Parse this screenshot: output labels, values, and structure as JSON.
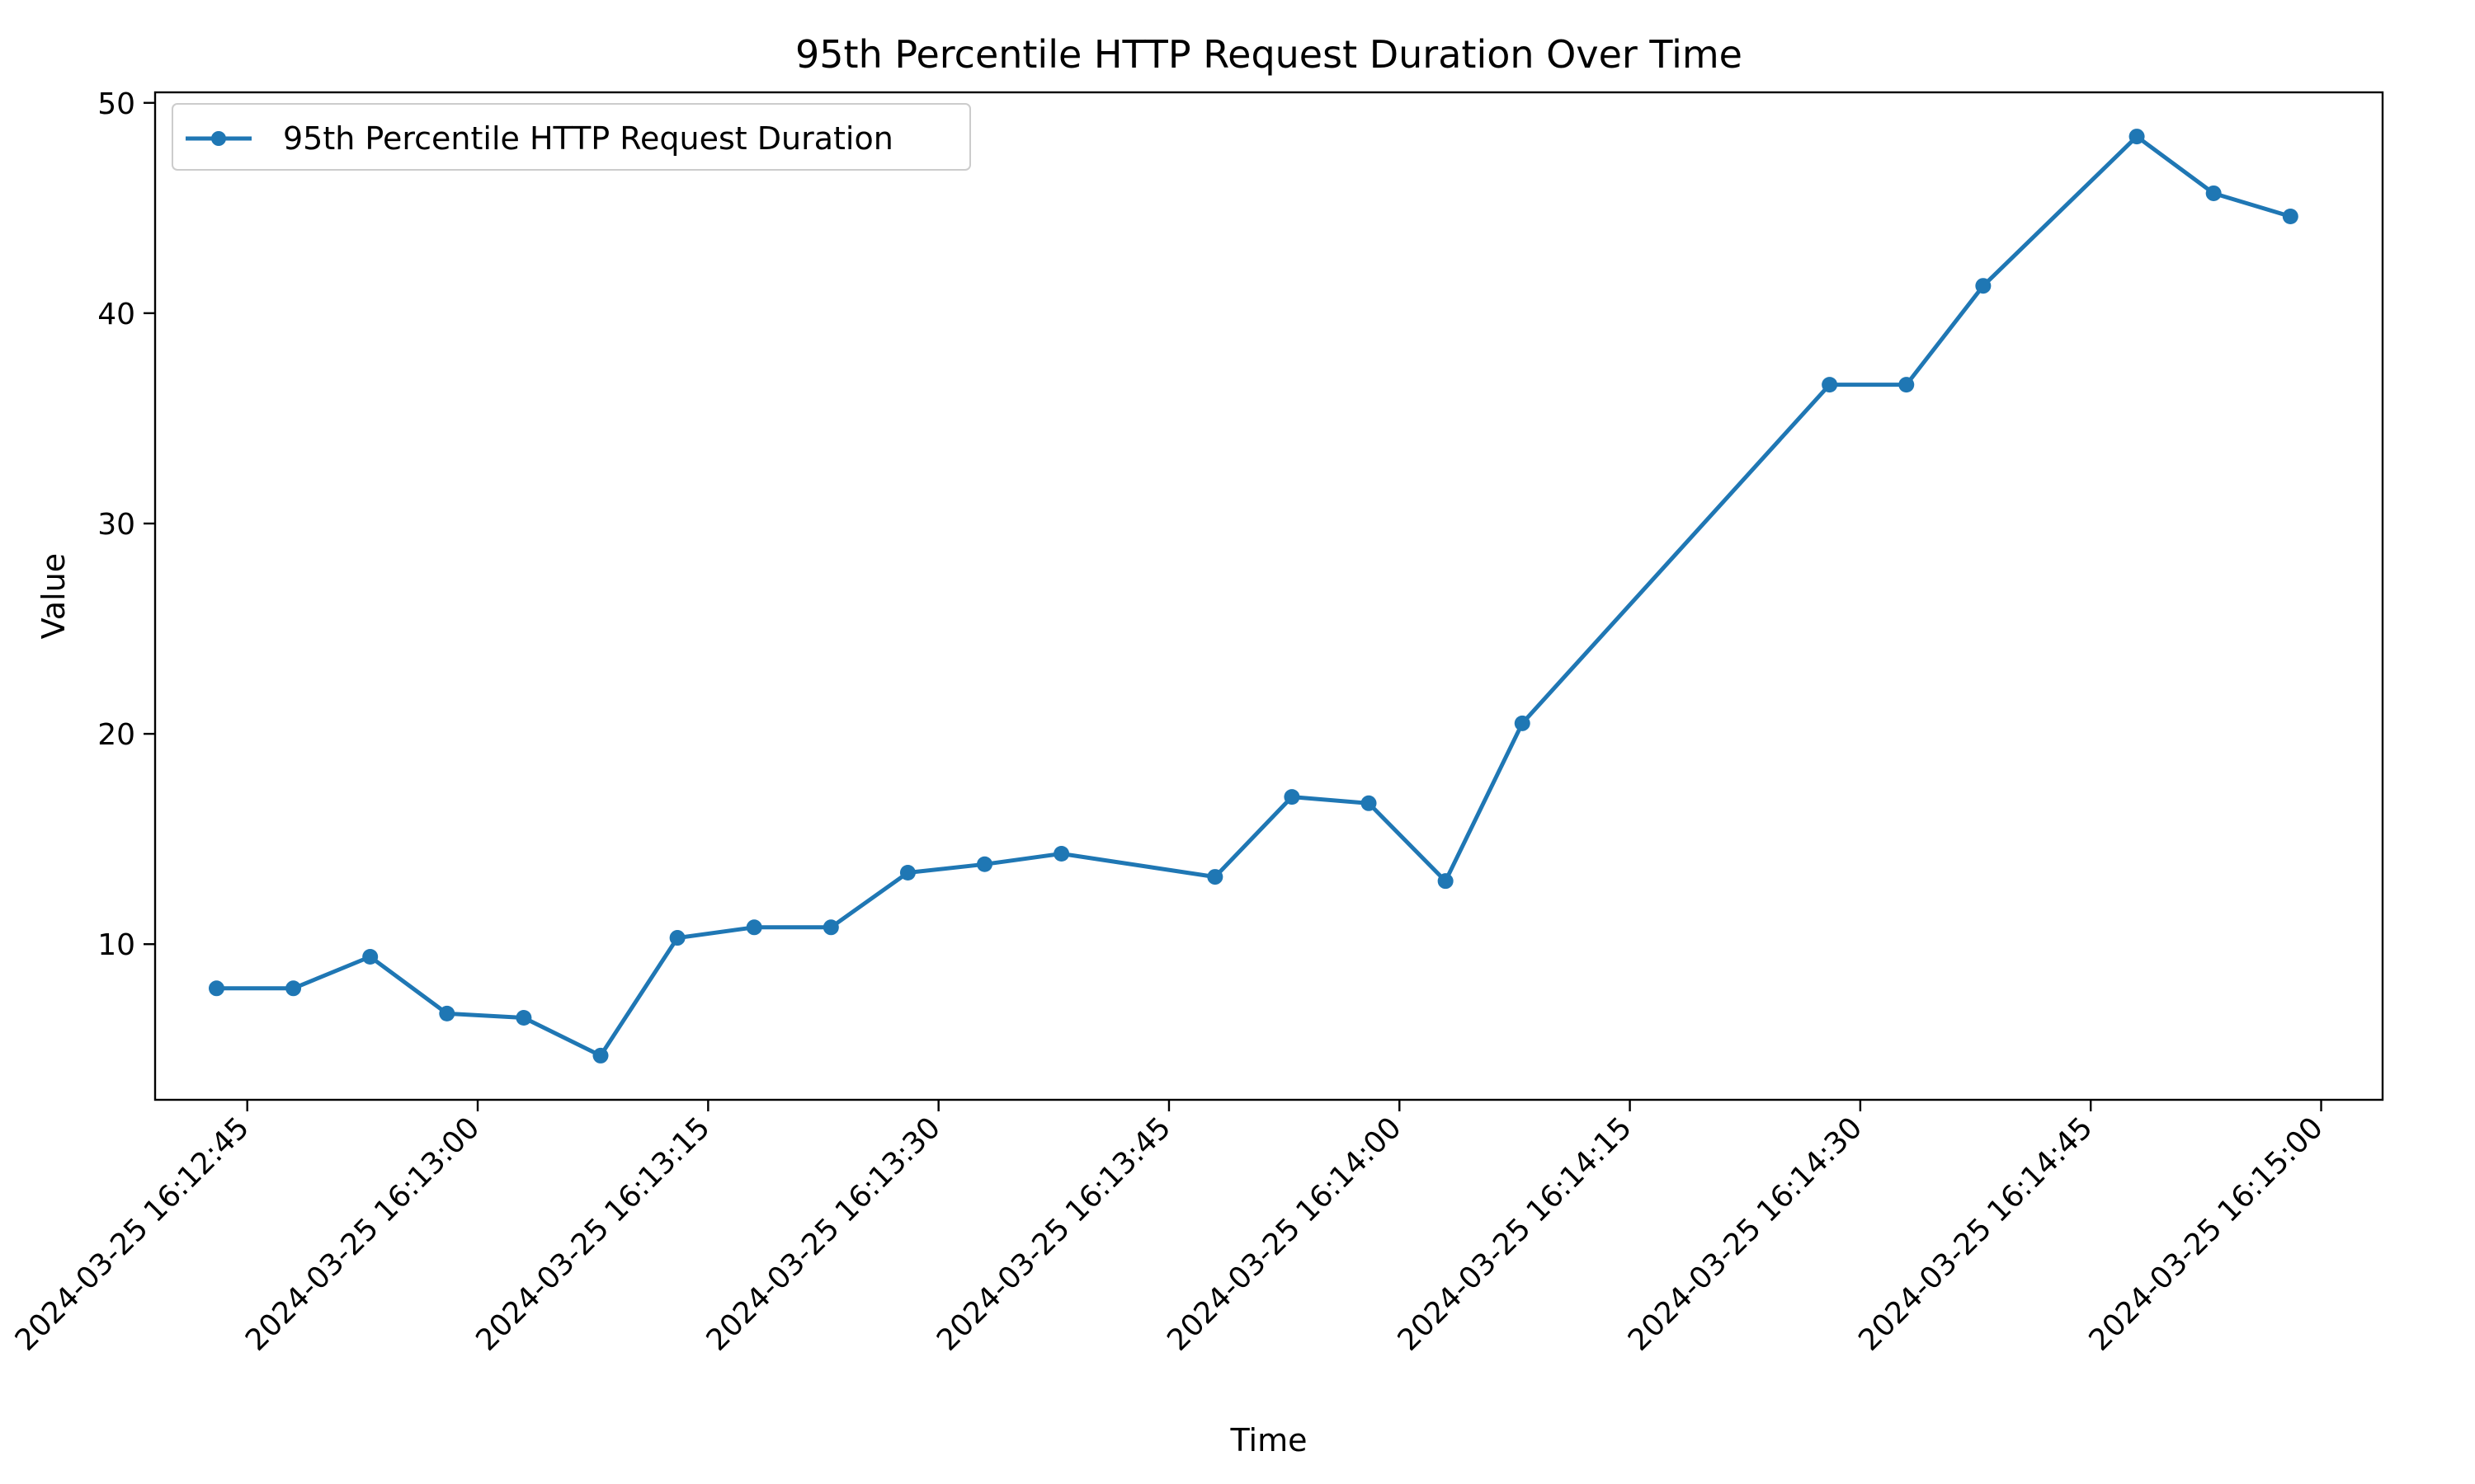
{
  "chart_data": {
    "type": "line",
    "title": "95th Percentile HTTP Request Duration Over Time",
    "xlabel": "Time",
    "ylabel": "Value",
    "xlim": [
      "2024-03-25 16:12:39",
      "2024-03-25 16:15:04"
    ],
    "ylim": [
      2.6,
      50.5
    ],
    "x_ticks": [
      "2024-03-25 16:12:45",
      "2024-03-25 16:13:00",
      "2024-03-25 16:13:15",
      "2024-03-25 16:13:30",
      "2024-03-25 16:13:45",
      "2024-03-25 16:14:00",
      "2024-03-25 16:14:15",
      "2024-03-25 16:14:30",
      "2024-03-25 16:14:45",
      "2024-03-25 16:15:00"
    ],
    "y_ticks": [
      10,
      20,
      30,
      40,
      50
    ],
    "grid": false,
    "legend_position": "top-left",
    "colors": {
      "series": "#1f77b4"
    },
    "series": [
      {
        "name": "95th Percentile HTTP Request Duration",
        "x": [
          "2024-03-25 16:12:43",
          "2024-03-25 16:12:48",
          "2024-03-25 16:12:53",
          "2024-03-25 16:12:58",
          "2024-03-25 16:13:03",
          "2024-03-25 16:13:08",
          "2024-03-25 16:13:13",
          "2024-03-25 16:13:18",
          "2024-03-25 16:13:23",
          "2024-03-25 16:13:28",
          "2024-03-25 16:13:33",
          "2024-03-25 16:13:38",
          "2024-03-25 16:13:48",
          "2024-03-25 16:13:53",
          "2024-03-25 16:13:58",
          "2024-03-25 16:14:03",
          "2024-03-25 16:14:08",
          "2024-03-25 16:14:28",
          "2024-03-25 16:14:33",
          "2024-03-25 16:14:38",
          "2024-03-25 16:14:48",
          "2024-03-25 16:14:53",
          "2024-03-25 16:14:58"
        ],
        "y": [
          7.9,
          7.9,
          9.4,
          6.7,
          6.5,
          4.7,
          10.3,
          10.8,
          10.8,
          13.4,
          13.8,
          14.3,
          13.2,
          17.0,
          16.7,
          13.0,
          20.5,
          36.6,
          36.6,
          41.3,
          48.4,
          45.7,
          44.6
        ]
      }
    ]
  }
}
